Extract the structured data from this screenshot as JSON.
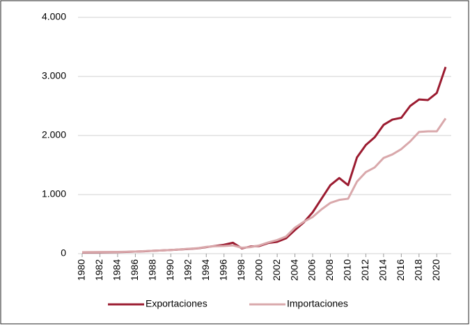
{
  "chart_data": {
    "type": "line",
    "x": [
      1980,
      1981,
      1982,
      1983,
      1984,
      1985,
      1986,
      1987,
      1988,
      1989,
      1990,
      1991,
      1992,
      1993,
      1994,
      1995,
      1996,
      1997,
      1998,
      1999,
      2000,
      2001,
      2002,
      2003,
      2004,
      2005,
      2006,
      2007,
      2008,
      2009,
      2010,
      2011,
      2012,
      2013,
      2014,
      2015,
      2016,
      2017,
      2018,
      2019,
      2020,
      2021
    ],
    "series": [
      {
        "name": "Exportaciones",
        "color": "#9b1b30",
        "values": [
          20,
          22,
          24,
          25,
          27,
          30,
          35,
          40,
          48,
          55,
          62,
          70,
          80,
          90,
          110,
          130,
          150,
          185,
          90,
          120,
          130,
          180,
          200,
          260,
          400,
          530,
          700,
          930,
          1160,
          1280,
          1160,
          1630,
          1840,
          1970,
          2180,
          2270,
          2300,
          2500,
          2610,
          2600,
          2720,
          3160
        ]
      },
      {
        "name": "Importaciones",
        "color": "#d9a8ab",
        "values": [
          25,
          27,
          28,
          28,
          30,
          32,
          36,
          42,
          48,
          55,
          62,
          72,
          82,
          92,
          115,
          125,
          130,
          140,
          100,
          110,
          140,
          190,
          230,
          290,
          440,
          540,
          620,
          750,
          860,
          910,
          930,
          1220,
          1380,
          1460,
          1620,
          1680,
          1770,
          1900,
          2060,
          2070,
          2070,
          2290
        ]
      }
    ],
    "xlim": [
      1980,
      2021
    ],
    "xticks": [
      1980,
      1982,
      1984,
      1986,
      1988,
      1990,
      1992,
      1994,
      1996,
      1998,
      2000,
      2002,
      2004,
      2006,
      2008,
      2010,
      2012,
      2014,
      2016,
      2018,
      2020
    ],
    "ylim": [
      0,
      4000
    ],
    "yticks": [
      0,
      {
        "value": 1000,
        "label": "1.000"
      },
      {
        "value": 2000,
        "label": "2.000"
      },
      {
        "value": 3000,
        "label": "3.000"
      },
      {
        "value": 4000,
        "label": "4.000"
      }
    ],
    "grid": true,
    "legend": "bottom"
  }
}
